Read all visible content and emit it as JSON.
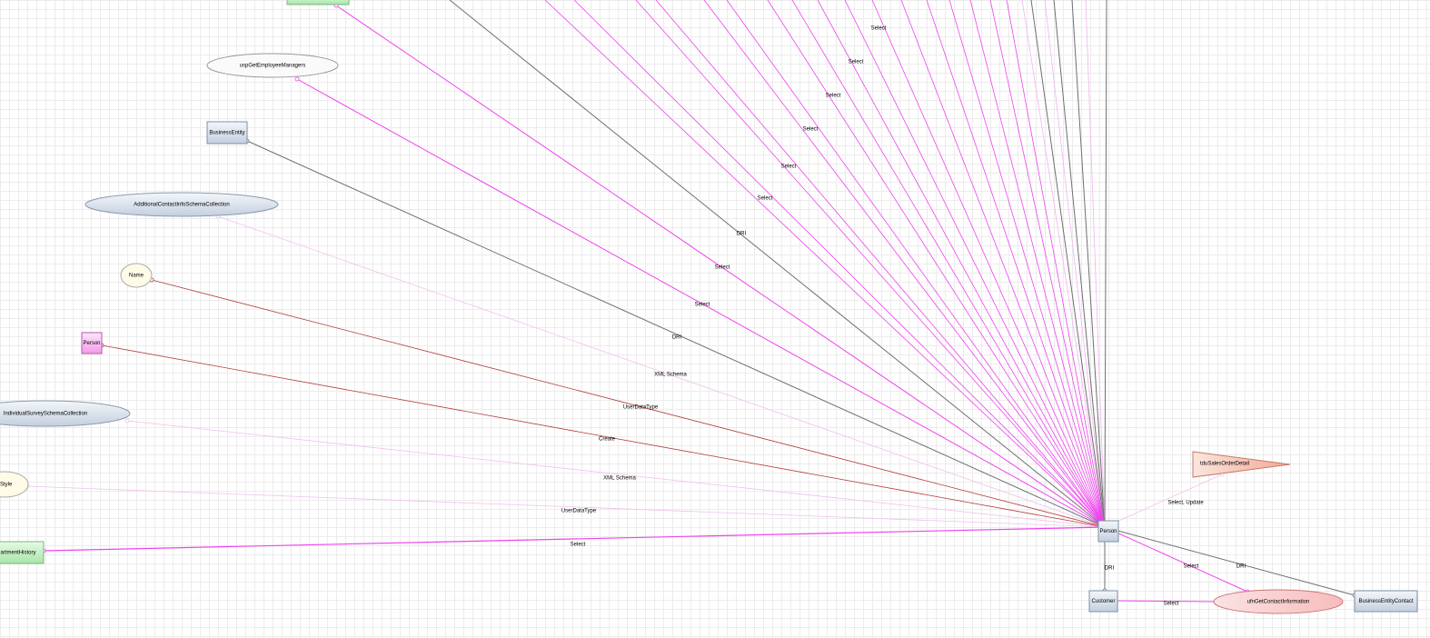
{
  "nodes": [
    {
      "label": "uspGetEmployeeManagers"
    },
    {
      "label": "BusinessEntity"
    },
    {
      "label": "AdditionalContactInfoSchemaCollection"
    },
    {
      "label": "Name"
    },
    {
      "label": "Person"
    },
    {
      "label": "IndividualSurveySchemaCollection"
    },
    {
      "label": "eStyle"
    },
    {
      "label": "artmentHistory"
    },
    {
      "label": "Person"
    },
    {
      "label": "tduSalesOrderDetail"
    },
    {
      "label": "Customer"
    },
    {
      "label": "ufnGetContactInformation"
    },
    {
      "label": "BusinessEntityContact"
    }
  ],
  "edges": [
    {
      "label": "Select"
    },
    {
      "label": "Select"
    },
    {
      "label": "Select"
    },
    {
      "label": "Select"
    },
    {
      "label": "Select"
    },
    {
      "label": "Select"
    },
    {
      "label": "DRI"
    },
    {
      "label": "Select"
    },
    {
      "label": "Select"
    },
    {
      "label": "DRI"
    },
    {
      "label": "XML Schema"
    },
    {
      "label": "UserDataType"
    },
    {
      "label": "Create"
    },
    {
      "label": "XML Schema"
    },
    {
      "label": "UserDataType"
    },
    {
      "label": "Select"
    },
    {
      "label": "Select, Update"
    },
    {
      "label": "DRI"
    },
    {
      "label": "Select"
    },
    {
      "label": "DRI"
    },
    {
      "label": "Select"
    }
  ]
}
